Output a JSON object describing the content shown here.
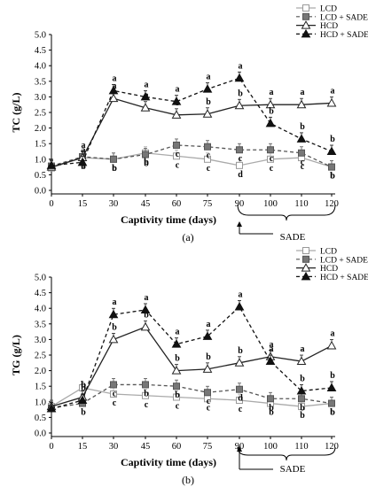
{
  "chart_data": [
    {
      "type": "line",
      "panel_label": "(a)",
      "ylabel": "TC (g/L)",
      "xlabel": "Captivity time (days)",
      "x": [
        0,
        15,
        30,
        45,
        60,
        75,
        90,
        100,
        110,
        120
      ],
      "ylim": [
        0,
        5
      ],
      "yticks": [
        "0.0",
        "0.5",
        "1.0",
        "1.5",
        "2.0",
        "2.5",
        "3.0",
        "3.5",
        "4.0",
        "4.5",
        "5.0"
      ],
      "xticks": [
        "0",
        "15",
        "30",
        "45",
        "60",
        "75",
        "90",
        "100",
        "110",
        "120"
      ],
      "treatment_label": "SADE",
      "series": [
        {
          "name": "LCD",
          "values": [
            0.72,
            1.05,
            1.0,
            1.2,
            1.1,
            1.0,
            0.8,
            1.0,
            1.05,
            0.75
          ],
          "letters": [
            "",
            "b",
            "b",
            "b",
            "c",
            "c",
            "d",
            "c",
            "c",
            "b"
          ]
        },
        {
          "name": "LCD + SADE",
          "values": [
            0.78,
            1.08,
            1.0,
            1.15,
            1.45,
            1.4,
            1.3,
            1.3,
            1.2,
            0.75
          ],
          "letters": [
            "",
            "a",
            "b",
            "b",
            "c",
            "c",
            "c",
            "c",
            "c",
            "b"
          ]
        },
        {
          "name": "HCD",
          "values": [
            0.75,
            1.05,
            2.95,
            2.65,
            2.42,
            2.45,
            2.72,
            2.75,
            2.75,
            2.8
          ],
          "letters": [
            "",
            "a",
            "a",
            "a",
            "b",
            "b",
            "b",
            "a",
            "a",
            "a"
          ]
        },
        {
          "name": "HCD + SADE",
          "values": [
            0.8,
            0.9,
            3.2,
            3.0,
            2.85,
            3.25,
            3.6,
            2.15,
            1.65,
            1.25
          ],
          "letters": [
            "",
            "a",
            "a",
            "a",
            "a",
            "a",
            "a",
            "b",
            "b",
            "b"
          ]
        }
      ]
    },
    {
      "type": "line",
      "panel_label": "(b)",
      "ylabel": "TG (g/L)",
      "xlabel": "Captivity time (days)",
      "x": [
        0,
        15,
        30,
        45,
        60,
        75,
        90,
        100,
        110,
        120
      ],
      "ylim": [
        0,
        5
      ],
      "yticks": [
        "0.0",
        "0.5",
        "1.0",
        "1.5",
        "2.0",
        "2.5",
        "3.0",
        "3.5",
        "4.0",
        "4.5",
        "5.0"
      ],
      "xticks": [
        "0",
        "15",
        "30",
        "45",
        "60",
        "75",
        "90",
        "100",
        "110",
        "120"
      ],
      "treatment_label": "SADE",
      "series": [
        {
          "name": "LCD",
          "values": [
            0.85,
            1.45,
            1.25,
            1.2,
            1.15,
            1.1,
            1.05,
            0.95,
            0.85,
            0.95
          ],
          "letters": [
            "",
            "a",
            "c",
            "c",
            "c",
            "c",
            "c",
            "b",
            "b",
            "b"
          ]
        },
        {
          "name": "LCD + SADE",
          "values": [
            0.8,
            0.95,
            1.55,
            1.55,
            1.5,
            1.3,
            1.4,
            1.1,
            1.1,
            0.95
          ],
          "letters": [
            "",
            "b",
            "c",
            "b",
            "b",
            "c",
            "d",
            "b",
            "b",
            "b"
          ]
        },
        {
          "name": "HCD",
          "values": [
            0.85,
            1.15,
            3.0,
            3.4,
            2.0,
            2.05,
            2.25,
            2.45,
            2.3,
            2.8
          ],
          "letters": [
            "",
            "b",
            "b",
            "b",
            "b",
            "b",
            "b",
            "a",
            "a",
            "a"
          ]
        },
        {
          "name": "HCD + SADE",
          "values": [
            0.78,
            1.05,
            3.8,
            3.95,
            2.85,
            3.1,
            4.05,
            2.3,
            1.35,
            1.45
          ],
          "letters": [
            "",
            "b",
            "a",
            "a",
            "a",
            "a",
            "a",
            "a",
            "b",
            "b"
          ]
        }
      ]
    }
  ]
}
